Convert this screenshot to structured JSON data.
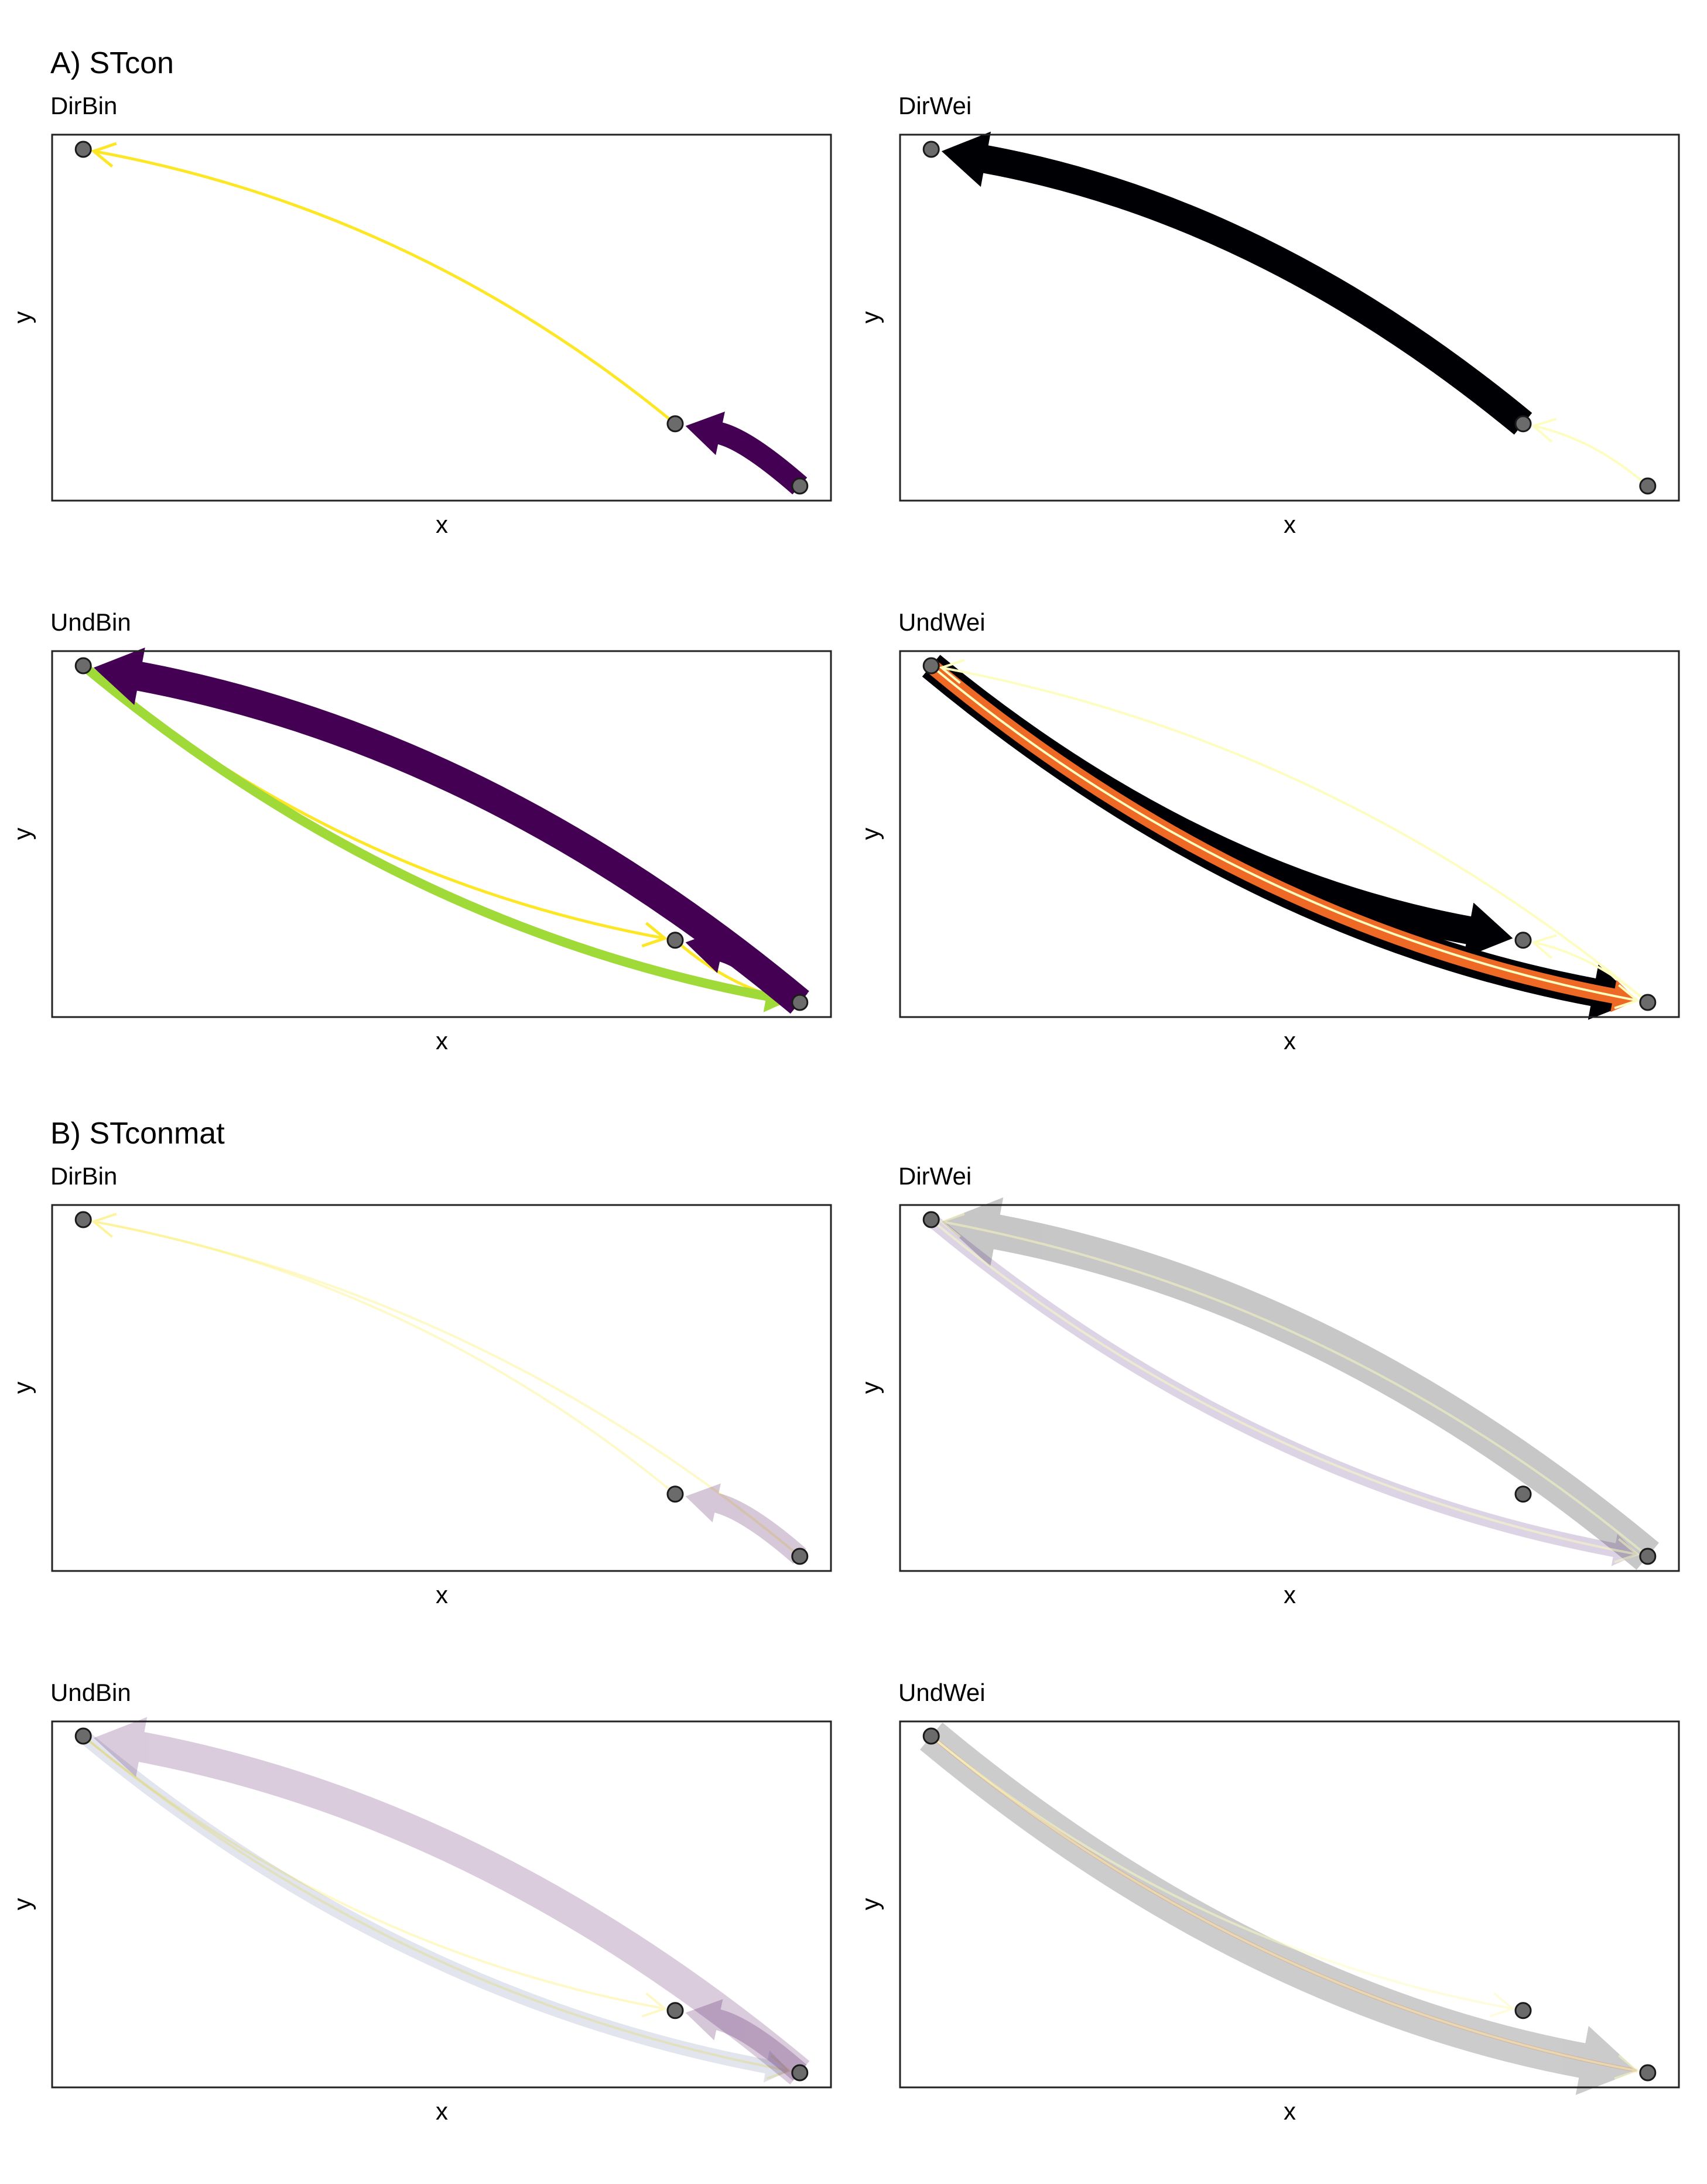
{
  "sections": [
    {
      "title": "A) STcon"
    },
    {
      "title": "B) STconmat"
    }
  ],
  "chart_data": [
    {
      "type": "network",
      "section": "A) STcon",
      "title": "DirBin",
      "xlabel": "x",
      "ylabel": "y",
      "nodes": [
        {
          "x": 0.04,
          "y": 0.96
        },
        {
          "x": 0.8,
          "y": 0.21
        },
        {
          "x": 0.96,
          "y": 0.04
        }
      ],
      "edges": [
        {
          "from": 1,
          "to": 0,
          "width": 5,
          "color": "#FDE725",
          "opacity": 1,
          "arrow": "open"
        },
        {
          "from": 2,
          "to": 1,
          "width": 38,
          "color": "#440154",
          "opacity": 1,
          "arrow": "filled"
        }
      ]
    },
    {
      "type": "network",
      "section": "A) STcon",
      "title": "DirWei",
      "xlabel": "x",
      "ylabel": "y",
      "nodes": [
        {
          "x": 0.04,
          "y": 0.96
        },
        {
          "x": 0.8,
          "y": 0.21
        },
        {
          "x": 0.96,
          "y": 0.04
        }
      ],
      "edges": [
        {
          "from": 1,
          "to": 0,
          "width": 48,
          "color": "#000004",
          "opacity": 1,
          "arrow": "filled"
        },
        {
          "from": 2,
          "to": 1,
          "width": 4,
          "color": "#FCFDBF",
          "opacity": 1,
          "arrow": "open"
        }
      ]
    },
    {
      "type": "network",
      "section": "A) STcon",
      "title": "UndBin",
      "xlabel": "x",
      "ylabel": "y",
      "nodes": [
        {
          "x": 0.04,
          "y": 0.96
        },
        {
          "x": 0.8,
          "y": 0.21
        },
        {
          "x": 0.96,
          "y": 0.04
        }
      ],
      "edges": [
        {
          "from": 0,
          "to": 1,
          "width": 5,
          "color": "#FDE725",
          "opacity": 1,
          "arrow": "open"
        },
        {
          "from": 0,
          "to": 2,
          "width": 5,
          "color": "#FDE725",
          "opacity": 1,
          "arrow": "open"
        },
        {
          "from": 1,
          "to": 2,
          "width": 5,
          "color": "#FDE725",
          "opacity": 1,
          "arrow": "open"
        },
        {
          "from": 0,
          "to": 2,
          "width": 16,
          "color": "#A0DA39",
          "opacity": 1,
          "arrow": "filled"
        },
        {
          "from": 2,
          "to": 0,
          "width": 50,
          "color": "#440154",
          "opacity": 1,
          "arrow": "filled"
        },
        {
          "from": 2,
          "to": 1,
          "width": 40,
          "color": "#440154",
          "opacity": 1,
          "arrow": "filled"
        }
      ]
    },
    {
      "type": "network",
      "section": "A) STcon",
      "title": "UndWei",
      "xlabel": "x",
      "ylabel": "y",
      "nodes": [
        {
          "x": 0.04,
          "y": 0.96
        },
        {
          "x": 0.8,
          "y": 0.21
        },
        {
          "x": 0.96,
          "y": 0.04
        }
      ],
      "edges": [
        {
          "from": 0,
          "to": 2,
          "width": 48,
          "color": "#000004",
          "opacity": 1,
          "arrow": "filled"
        },
        {
          "from": 0,
          "to": 1,
          "width": 48,
          "color": "#000004",
          "opacity": 1,
          "arrow": "filled"
        },
        {
          "from": 0,
          "to": 2,
          "width": 26,
          "color": "#ED6925",
          "opacity": 1,
          "arrow": "filled"
        },
        {
          "from": 2,
          "to": 0,
          "width": 4,
          "color": "#FCFDBF",
          "opacity": 1,
          "arrow": "open"
        },
        {
          "from": 0,
          "to": 2,
          "width": 4,
          "color": "#FCFDBF",
          "opacity": 1,
          "arrow": "open"
        },
        {
          "from": 2,
          "to": 1,
          "width": 4,
          "color": "#FCFDBF",
          "opacity": 1,
          "arrow": "open"
        }
      ]
    },
    {
      "type": "network",
      "section": "B) STconmat",
      "title": "DirBin",
      "xlabel": "x",
      "ylabel": "y",
      "nodes": [
        {
          "x": 0.04,
          "y": 0.96
        },
        {
          "x": 0.8,
          "y": 0.21
        },
        {
          "x": 0.96,
          "y": 0.04
        }
      ],
      "edges": [
        {
          "from": 1,
          "to": 0,
          "width": 4,
          "color": "#FDE725",
          "opacity": 0.25,
          "arrow": "open"
        },
        {
          "from": 2,
          "to": 0,
          "width": 4,
          "color": "#FDE725",
          "opacity": 0.25,
          "arrow": "open"
        },
        {
          "from": 2,
          "to": 1,
          "width": 34,
          "color": "#440154",
          "opacity": 0.22,
          "arrow": "filled"
        }
      ]
    },
    {
      "type": "network",
      "section": "B) STconmat",
      "title": "DirWei",
      "xlabel": "x",
      "ylabel": "y",
      "nodes": [
        {
          "x": 0.04,
          "y": 0.96
        },
        {
          "x": 0.8,
          "y": 0.21
        },
        {
          "x": 0.96,
          "y": 0.04
        }
      ],
      "edges": [
        {
          "from": 2,
          "to": 0,
          "width": 60,
          "color": "#000004",
          "opacity": 0.22,
          "arrow": "filled"
        },
        {
          "from": 0,
          "to": 2,
          "width": 24,
          "color": "#3B0F70",
          "opacity": 0.18,
          "arrow": "filled"
        },
        {
          "from": 2,
          "to": 0,
          "width": 4,
          "color": "#FCFDBF",
          "opacity": 0.5,
          "arrow": "open"
        },
        {
          "from": 0,
          "to": 2,
          "width": 4,
          "color": "#FCFDBF",
          "opacity": 0.5,
          "arrow": "open"
        }
      ]
    },
    {
      "type": "network",
      "section": "B) STconmat",
      "title": "UndBin",
      "xlabel": "x",
      "ylabel": "y",
      "nodes": [
        {
          "x": 0.04,
          "y": 0.96
        },
        {
          "x": 0.8,
          "y": 0.21
        },
        {
          "x": 0.96,
          "y": 0.04
        }
      ],
      "edges": [
        {
          "from": 0,
          "to": 1,
          "width": 4,
          "color": "#FDE725",
          "opacity": 0.25,
          "arrow": "open"
        },
        {
          "from": 0,
          "to": 2,
          "width": 4,
          "color": "#FDE725",
          "opacity": 0.25,
          "arrow": "open"
        },
        {
          "from": 2,
          "to": 0,
          "width": 52,
          "color": "#440154",
          "opacity": 0.2,
          "arrow": "filled"
        },
        {
          "from": 0,
          "to": 2,
          "width": 24,
          "color": "#3B528B",
          "opacity": 0.15,
          "arrow": "filled"
        },
        {
          "from": 2,
          "to": 1,
          "width": 36,
          "color": "#440154",
          "opacity": 0.22,
          "arrow": "filled"
        }
      ]
    },
    {
      "type": "network",
      "section": "B) STconmat",
      "title": "UndWei",
      "xlabel": "x",
      "ylabel": "y",
      "nodes": [
        {
          "x": 0.04,
          "y": 0.96
        },
        {
          "x": 0.8,
          "y": 0.21
        },
        {
          "x": 0.96,
          "y": 0.04
        }
      ],
      "edges": [
        {
          "from": 0,
          "to": 2,
          "width": 60,
          "color": "#000004",
          "opacity": 0.2,
          "arrow": "filled"
        },
        {
          "from": 0,
          "to": 2,
          "width": 6,
          "color": "#ED6925",
          "opacity": 0.25,
          "arrow": "none"
        },
        {
          "from": 0,
          "to": 2,
          "width": 4,
          "color": "#FCFDBF",
          "opacity": 0.5,
          "arrow": "open"
        },
        {
          "from": 0,
          "to": 1,
          "width": 4,
          "color": "#FCFDBF",
          "opacity": 0.5,
          "arrow": "open"
        }
      ]
    }
  ]
}
